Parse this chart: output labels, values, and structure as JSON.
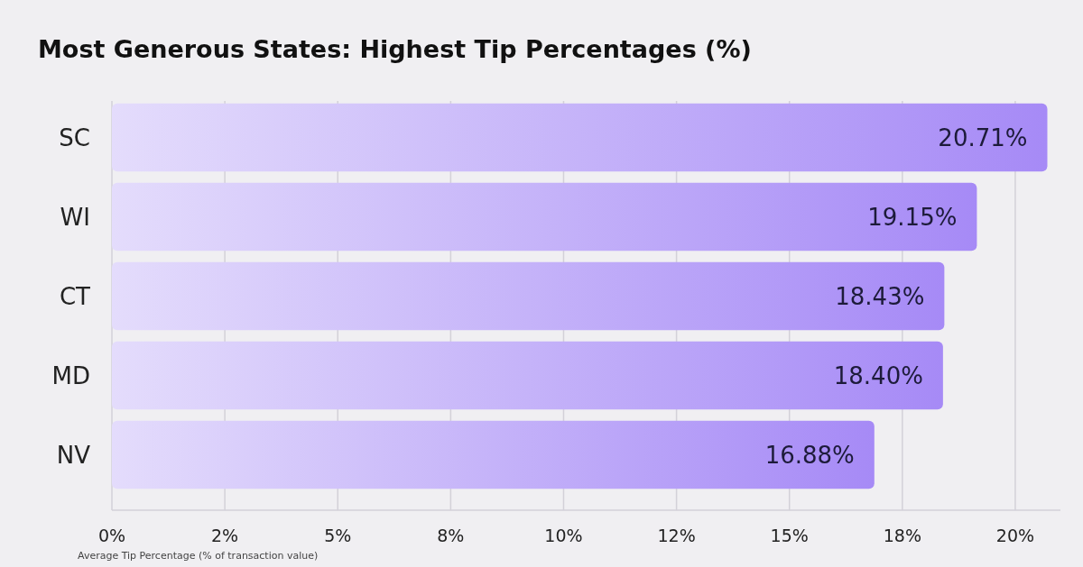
{
  "chart_data": {
    "type": "bar",
    "orientation": "horizontal",
    "title": "Most Generous States: Highest Tip Percentages (%)",
    "xlabel": "Average Tip Percentage (% of transaction value)",
    "categories": [
      "SC",
      "WI",
      "CT",
      "MD",
      "NV"
    ],
    "values": [
      20.71,
      19.15,
      18.43,
      18.4,
      16.88
    ],
    "value_labels": [
      "20.71%",
      "19.15%",
      "18.43%",
      "18.40%",
      "16.88%"
    ],
    "color": "#a68af6",
    "xlim": [
      0,
      21
    ],
    "xticks": [
      {
        "value": 0,
        "label": "0%"
      },
      {
        "value": 2.5,
        "label": "2%"
      },
      {
        "value": 5,
        "label": "5%"
      },
      {
        "value": 7.5,
        "label": "8%"
      },
      {
        "value": 10,
        "label": "10%"
      },
      {
        "value": 12.5,
        "label": "12%"
      },
      {
        "value": 15,
        "label": "15%"
      },
      {
        "value": 17.5,
        "label": "18%"
      },
      {
        "value": 20,
        "label": "20%"
      }
    ],
    "grid": "x"
  }
}
